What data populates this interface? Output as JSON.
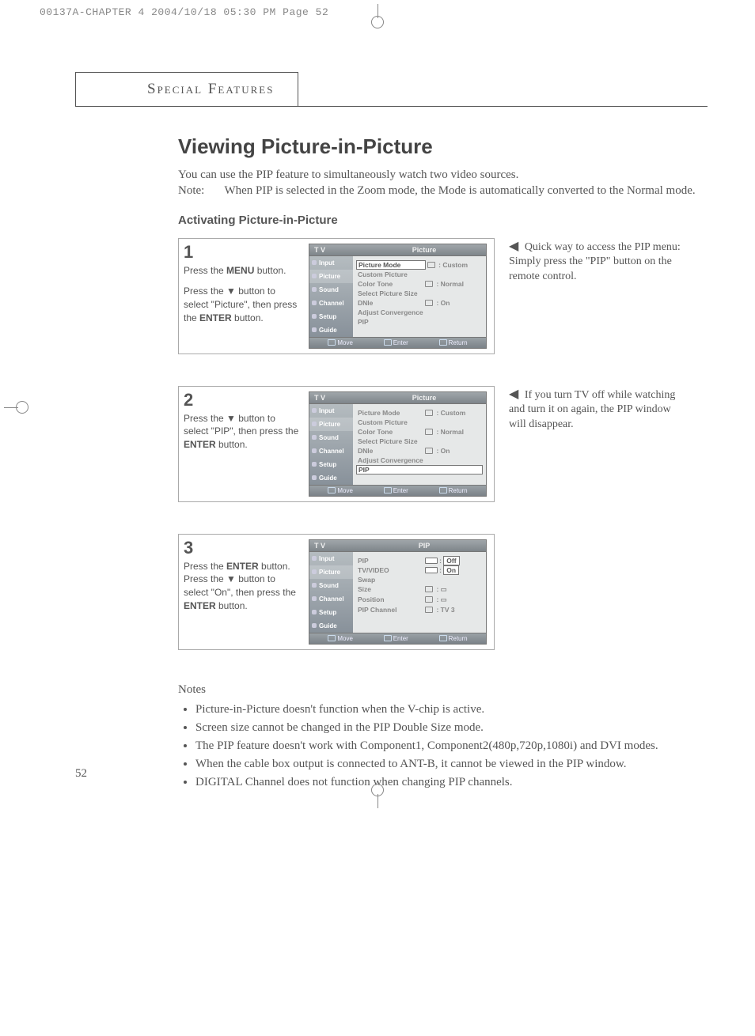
{
  "print_header": "00137A-CHAPTER 4  2004/10/18  05:30 PM  Page 52",
  "section_tab": "Special Features",
  "title": "Viewing Picture-in-Picture",
  "intro_line1": "You can use the PIP feature to simultaneously watch two video sources.",
  "intro_note_label": "Note:",
  "intro_note_text": "When PIP is selected in the Zoom mode, the Mode is automatically converted to the Normal mode.",
  "subhead": "Activating Picture-in-Picture",
  "side_labels": [
    "Input",
    "Picture",
    "Sound",
    "Channel",
    "Setup",
    "Guide"
  ],
  "foot_labels": [
    "Move",
    "Enter",
    "Return"
  ],
  "step1": {
    "num": "1",
    "line1a": "Press the ",
    "line1b": "MENU",
    "line1c": " button.",
    "line2a": "Press the ▼ button to select \"Picture\", then press the ",
    "line2b": "ENTER",
    "line2c": " button.",
    "osd_title": "Picture",
    "rows": [
      {
        "lab": "Picture Mode",
        "val": ": Custom",
        "hl": "lab"
      },
      {
        "lab": "Custom Picture",
        "val": ""
      },
      {
        "lab": "Color Tone",
        "val": ": Normal"
      },
      {
        "lab": "Select Picture Size",
        "val": ""
      },
      {
        "lab": "DNIe",
        "val": ": On"
      },
      {
        "lab": "Adjust Convergence",
        "val": ""
      },
      {
        "lab": "PIP",
        "val": ""
      }
    ]
  },
  "note1": "Quick way to access the PIP menu: Simply press the \"PIP\" button on the remote control.",
  "step2": {
    "num": "2",
    "line1a": "Press the ▼ button to select \"PIP\", then press the ",
    "line1b": "ENTER",
    "line1c": " button.",
    "osd_title": "Picture",
    "rows": [
      {
        "lab": "Picture Mode",
        "val": ": Custom"
      },
      {
        "lab": "Custom Picture",
        "val": ""
      },
      {
        "lab": "Color Tone",
        "val": ": Normal"
      },
      {
        "lab": "Select Picture Size",
        "val": ""
      },
      {
        "lab": "DNIe",
        "val": ": On"
      },
      {
        "lab": "Adjust Convergence",
        "val": ""
      },
      {
        "lab": "PIP",
        "val": "",
        "hl": "full"
      }
    ]
  },
  "note2": "If you turn TV off while watching and turn it on again, the PIP window will disappear.",
  "step3": {
    "num": "3",
    "line1a": "Press the ",
    "line1b": "ENTER",
    "line1c": " button. Press the ▼ button to select \"On\", then press the ",
    "line1d": "ENTER",
    "line1e": " button.",
    "osd_title": "PIP",
    "rows": [
      {
        "lab": "PIP",
        "val": "Off",
        "hl": "val",
        "colon": ":"
      },
      {
        "lab": "TV/VIDEO",
        "val": "On",
        "hl": "val",
        "colon": ":"
      },
      {
        "lab": "Swap",
        "val": ""
      },
      {
        "lab": "Size",
        "val": ": ▭"
      },
      {
        "lab": "Position",
        "val": ": ▭"
      },
      {
        "lab": "PIP Channel",
        "val": ": TV 3"
      }
    ]
  },
  "notes_label": "Notes",
  "notes": [
    "Picture-in-Picture doesn't function when the V-chip is active.",
    "Screen size cannot be changed in the PIP Double Size mode.",
    "The PIP feature doesn't work with Component1, Component2(480p,720p,1080i) and DVI modes.",
    "When the cable box output is connected to ANT-B, it cannot be viewed in the PIP window.",
    "DIGITAL Channel does not function when changing PIP channels."
  ],
  "page_number": "52"
}
